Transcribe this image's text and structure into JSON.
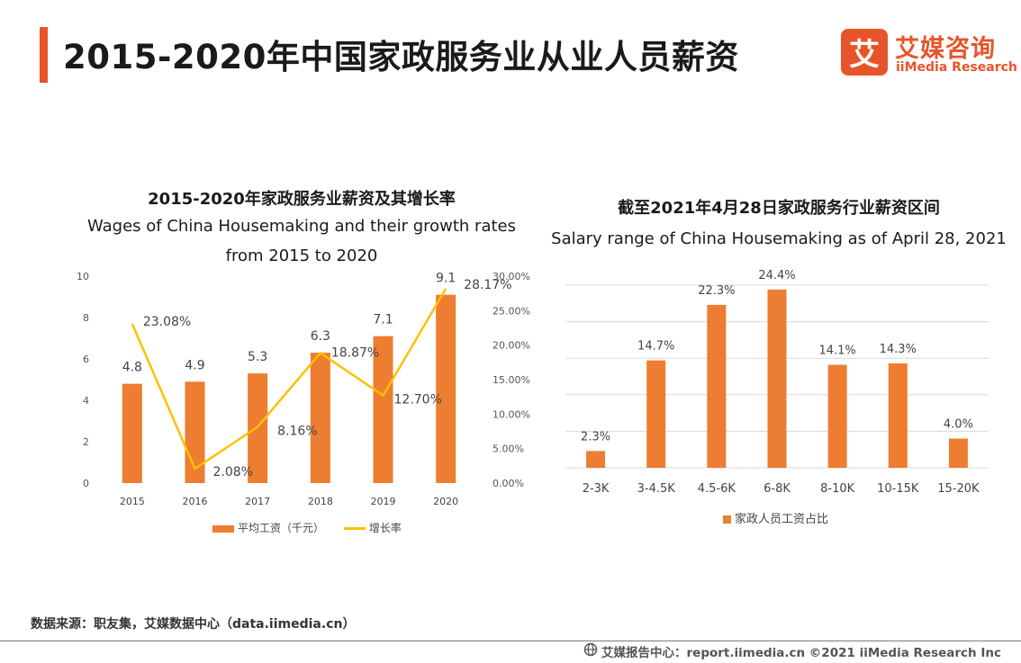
{
  "header": {
    "title": "2015-2020年中国家政服务业从业人员薪资",
    "logo_cn": "艾媒咨询",
    "logo_en": "iiMedia Research",
    "logo_mark": "艾"
  },
  "colors": {
    "accent": "#e8542a",
    "bar": "#ed7d31",
    "line": "#ffc000"
  },
  "chart_data": [
    {
      "type": "bar",
      "title": "2015-2020年家政服务业薪资及其增长率",
      "subtitle_line1": "Wages of China Housemaking  and their growth rates",
      "subtitle_line2": "from 2015 to 2020",
      "categories": [
        "2015",
        "2016",
        "2017",
        "2018",
        "2019",
        "2020"
      ],
      "series": [
        {
          "name": "平均工资（千元）",
          "type": "bar",
          "axis": "left",
          "values": [
            4.8,
            4.9,
            5.3,
            6.3,
            7.1,
            9.1
          ],
          "labels": [
            "4.8",
            "4.9",
            "5.3",
            "6.3",
            "7.1",
            "9.1"
          ]
        },
        {
          "name": "增长率",
          "type": "line",
          "axis": "right",
          "values": [
            23.08,
            2.08,
            8.16,
            18.87,
            12.7,
            28.17
          ],
          "labels": [
            "23.08%",
            "2.08%",
            "8.16%",
            "18.87%",
            "12.70%",
            "28.17%"
          ]
        }
      ],
      "ylim": [
        0,
        10
      ],
      "yticks": [
        "0",
        "2",
        "4",
        "6",
        "8",
        "10"
      ],
      "y2lim": [
        0,
        30
      ],
      "y2ticks": [
        "0.00%",
        "5.00%",
        "10.00%",
        "15.00%",
        "20.00%",
        "25.00%",
        "30.00%"
      ],
      "grid": false,
      "legend": "bottom"
    },
    {
      "type": "bar",
      "title": "截至2021年4月28日家政服务行业薪资区间",
      "subtitle": "Salary range of  China Housemaking as of April 28, 2021",
      "categories": [
        "2-3K",
        "3-4.5K",
        "4.5-6K",
        "6-8K",
        "8-10K",
        "10-15K",
        "15-20K"
      ],
      "series": [
        {
          "name": "家政人员工资占比",
          "values": [
            2.3,
            14.7,
            22.3,
            24.4,
            14.1,
            14.3,
            4.0
          ],
          "labels": [
            "2.3%",
            "14.7%",
            "22.3%",
            "24.4%",
            "14.1%",
            "14.3%",
            "4.0%"
          ]
        }
      ],
      "ylim": [
        0,
        25
      ],
      "grid": true,
      "legend": "bottom"
    }
  ],
  "footer": {
    "source": "数据来源：职友集，艾媒数据中心（data.iimedia.cn）",
    "credit": "艾媒报告中心：report.iimedia.cn  ©2021  iiMedia Research  Inc"
  }
}
